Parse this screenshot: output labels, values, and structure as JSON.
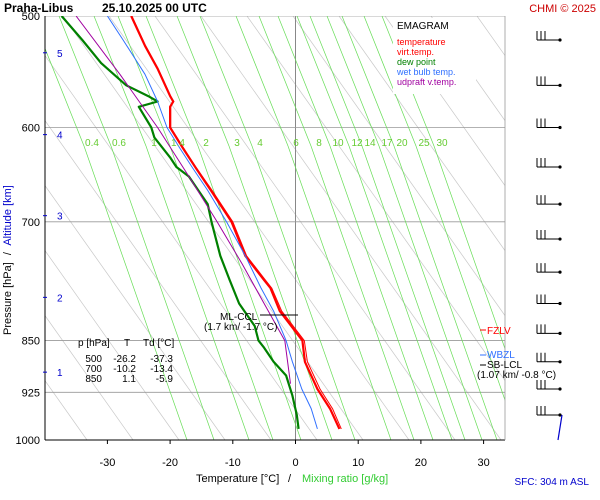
{
  "header": {
    "station": "Praha-Libus",
    "datetime": "25.10.2025 00 UTC",
    "copyright": "CHMI © 2025"
  },
  "legend": {
    "title": "EMAGRAM",
    "items": [
      {
        "label": "temperature",
        "color": "#ff0000"
      },
      {
        "label": "virt.temp.",
        "color": "#ff0000"
      },
      {
        "label": "dew point",
        "color": "#008000"
      },
      {
        "label": "wet bulb temp.",
        "color": "#3070ff"
      },
      {
        "label": "udpraft v.temp.",
        "color": "#a000a0"
      }
    ]
  },
  "axes": {
    "ylabel_pressure": "Pressure [hPa]",
    "ylabel_sep": "/",
    "ylabel_altitude": "Altitude [km]",
    "xlabel_temp": "Temperature [°C]",
    "xlabel_sep": "/",
    "xlabel_mix": "Mixing ratio [g/kg]"
  },
  "surface_info": "SFC: 304 m ASL",
  "annotations": {
    "ml_ccl": "ML-CCL",
    "ml_ccl_values": "(1.7 km/ -1.7 °C)",
    "fzlv": "FZLV",
    "wbzl": "WBZL",
    "sb_lcl": "SB-LCL",
    "sb_lcl_values": "(1.07 km/ -0.8 °C)"
  },
  "table": {
    "headers": [
      "p [hPa]",
      "T",
      "Td [°C]"
    ],
    "rows": [
      [
        "500",
        "-26.2",
        "-37.3"
      ],
      [
        "700",
        "-10.2",
        "-13.4"
      ],
      [
        "850",
        "1.1",
        "-5.9"
      ]
    ]
  },
  "chart_data": {
    "type": "line",
    "title": "EMAGRAM",
    "xlabel": "Temperature [°C]",
    "ylabel": "Pressure [hPa]",
    "y_scale": "log",
    "y_reversed": true,
    "xlim": [
      -40,
      33
    ],
    "ylim": [
      1000,
      500
    ],
    "x_ticks": [
      -30,
      -20,
      -10,
      0,
      10,
      20,
      30
    ],
    "y_ticks": [
      500,
      600,
      700,
      850,
      925,
      1000
    ],
    "altitude_ticks_km": [
      "1",
      "2",
      "3",
      "4",
      "5"
    ],
    "mixing_ratio_labels": [
      "0.4",
      "0.6",
      "1",
      "1.4",
      "2",
      "3",
      "4",
      "6",
      "8",
      "10",
      "12",
      "14",
      "17",
      "20",
      "25",
      "30"
    ],
    "wind_barb_levels": [
      520,
      560,
      600,
      640,
      680,
      720,
      760,
      800,
      840,
      880,
      920,
      960
    ],
    "series": [
      {
        "name": "temperature",
        "color": "#ff0000",
        "points": [
          [
            7,
            982
          ],
          [
            5.5,
            950
          ],
          [
            3.5,
            920
          ],
          [
            1.5,
            880
          ],
          [
            1.1,
            850
          ],
          [
            -2.5,
            810
          ],
          [
            -4,
            780
          ],
          [
            -5,
            770
          ],
          [
            -8,
            740
          ],
          [
            -10.2,
            700
          ],
          [
            -13.5,
            665
          ],
          [
            -16,
            640
          ],
          [
            -18,
            620
          ],
          [
            -20,
            600
          ],
          [
            -20,
            580
          ],
          [
            -19.5,
            575
          ],
          [
            -20,
            570
          ],
          [
            -22,
            545
          ],
          [
            -24,
            525
          ],
          [
            -26.2,
            500
          ]
        ]
      },
      {
        "name": "virt.temp.",
        "color": "#ff0000",
        "points": [
          [
            7.3,
            982
          ],
          [
            5.9,
            950
          ],
          [
            3.9,
            920
          ],
          [
            1.9,
            880
          ],
          [
            1.4,
            850
          ],
          [
            -2.2,
            810
          ],
          [
            -3.8,
            780
          ],
          [
            -4.8,
            770
          ],
          [
            -7.8,
            740
          ],
          [
            -10,
            700
          ],
          [
            -13.3,
            665
          ],
          [
            -15.9,
            640
          ],
          [
            -17.9,
            620
          ],
          [
            -19.9,
            600
          ],
          [
            -19.9,
            580
          ],
          [
            -19.4,
            575
          ],
          [
            -19.9,
            570
          ],
          [
            -21.9,
            545
          ],
          [
            -23.9,
            525
          ],
          [
            -26.1,
            500
          ]
        ]
      },
      {
        "name": "dew point",
        "color": "#008000",
        "points": [
          [
            0.5,
            982
          ],
          [
            0.2,
            960
          ],
          [
            -0.5,
            930
          ],
          [
            -1.5,
            900
          ],
          [
            -3.5,
            880
          ],
          [
            -5,
            860
          ],
          [
            -5.9,
            850
          ],
          [
            -6.5,
            830
          ],
          [
            -9,
            800
          ],
          [
            -10.5,
            770
          ],
          [
            -12,
            740
          ],
          [
            -13.4,
            700
          ],
          [
            -14,
            680
          ],
          [
            -15.5,
            665
          ],
          [
            -17,
            650
          ],
          [
            -19,
            640
          ],
          [
            -20,
            630
          ],
          [
            -22.5,
            610
          ],
          [
            -23,
            600
          ],
          [
            -25,
            580
          ],
          [
            -22,
            575
          ],
          [
            -23.5,
            570
          ],
          [
            -27,
            560
          ],
          [
            -31,
            540
          ],
          [
            -34,
            520
          ],
          [
            -37.3,
            500
          ]
        ]
      },
      {
        "name": "wet bulb temp.",
        "color": "#3070ff",
        "points": [
          [
            3.5,
            982
          ],
          [
            2.5,
            950
          ],
          [
            1,
            920
          ],
          [
            -0.5,
            880
          ],
          [
            -1.5,
            850
          ],
          [
            -3.5,
            810
          ],
          [
            -5.5,
            780
          ],
          [
            -8,
            740
          ],
          [
            -11,
            700
          ],
          [
            -14,
            665
          ],
          [
            -16.5,
            640
          ],
          [
            -18.5,
            620
          ],
          [
            -20.5,
            600
          ],
          [
            -22,
            575
          ],
          [
            -24,
            550
          ],
          [
            -27.5,
            520
          ],
          [
            -30,
            500
          ]
        ]
      },
      {
        "name": "udpraft v.temp.",
        "color": "#a000a0",
        "points": [
          [
            -0.8,
            912
          ],
          [
            -1.7,
            850
          ],
          [
            -5,
            800
          ],
          [
            -8.5,
            750
          ],
          [
            -12.5,
            700
          ],
          [
            -17,
            650
          ],
          [
            -22,
            600
          ],
          [
            -28,
            550
          ],
          [
            -35,
            500
          ]
        ]
      }
    ]
  }
}
